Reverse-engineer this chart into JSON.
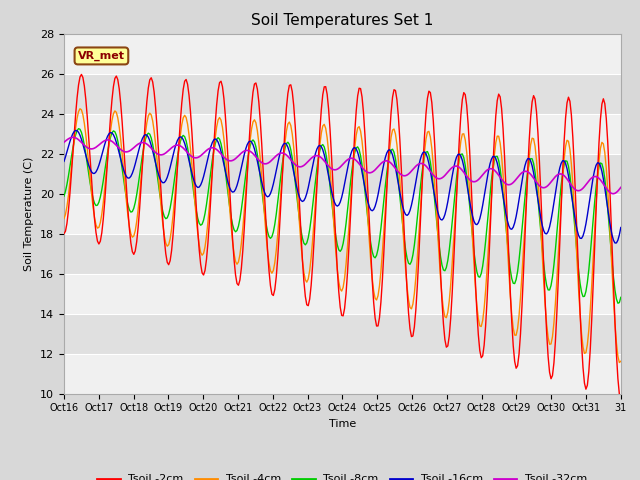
{
  "title": "Soil Temperatures Set 1",
  "xlabel": "Time",
  "ylabel": "Soil Temperature (C)",
  "ylim": [
    10,
    28
  ],
  "yticks": [
    10,
    12,
    14,
    16,
    18,
    20,
    22,
    24,
    26,
    28
  ],
  "xtick_labels": [
    "Oct 16",
    "Oct 17",
    "Oct 18",
    "Oct 19",
    "Oct 20",
    "Oct 21",
    "Oct 22",
    "Oct 23",
    "Oct 24",
    "Oct 25",
    "Oct 26",
    "Oct 27",
    "Oct 28",
    "Oct 29",
    "Oct 30",
    "Oct 31",
    "31"
  ],
  "line_colors": {
    "Tsoil -2cm": "#ff0000",
    "Tsoil -4cm": "#ff8c00",
    "Tsoil -8cm": "#00cc00",
    "Tsoil -16cm": "#0000cc",
    "Tsoil -32cm": "#cc00cc"
  },
  "annotation_text": "VR_met",
  "bg_color": "#e8e8e8",
  "title_fontsize": 11,
  "figsize": [
    6.4,
    4.8
  ],
  "dpi": 100
}
